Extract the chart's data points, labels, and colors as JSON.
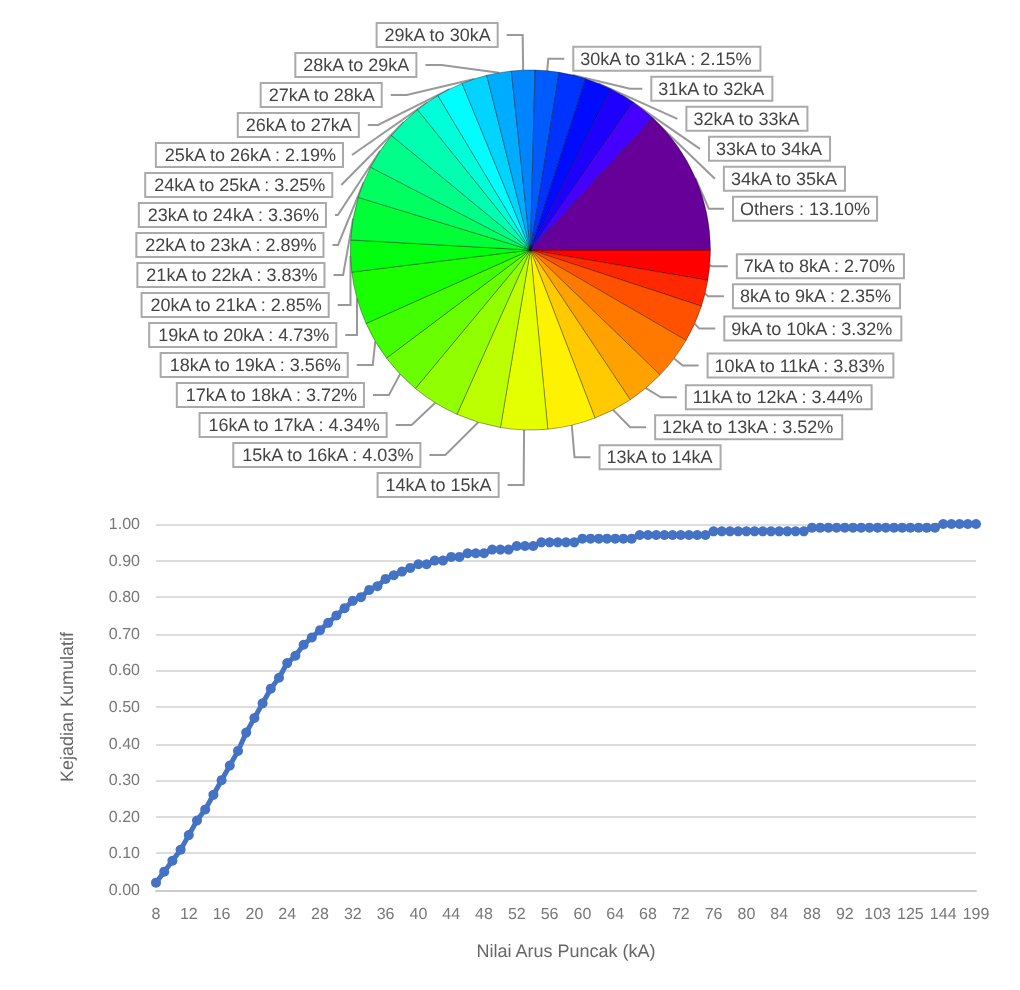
{
  "chart_data": [
    {
      "type": "pie",
      "categories": [
        "7kA to 8kA",
        "8kA to 9kA",
        "9kA to 10kA",
        "10kA to 11kA",
        "11kA to 12kA",
        "12kA to 13kA",
        "13kA to 14kA",
        "14kA to 15kA",
        "15kA to 16kA",
        "16kA to 17kA",
        "17kA to 18kA",
        "18kA to 19kA",
        "19kA to 20kA",
        "20kA to 21kA",
        "21kA to 22kA",
        "22kA to 23kA",
        "23kA to 24kA",
        "24kA to 25kA",
        "25kA to 26kA",
        "26kA to 27kA",
        "27kA to 28kA",
        "28kA to 29kA",
        "29kA to 30kA",
        "30kA to 31kA",
        "31kA to 32kA",
        "32kA to 33kA",
        "33kA to 34kA",
        "34kA to 35kA",
        "Others"
      ],
      "values": [
        2.7,
        2.35,
        3.32,
        3.83,
        3.44,
        3.52,
        4.3,
        4.2,
        4.03,
        4.34,
        3.72,
        3.56,
        4.73,
        2.85,
        3.83,
        2.89,
        3.36,
        3.25,
        2.19,
        2.4,
        2.3,
        2.2,
        2.1,
        2.15,
        2.4,
        2.4,
        2.3,
        2.24,
        13.1
      ],
      "value_labels": [
        "2.70%",
        "2.35%",
        "3.32%",
        "3.83%",
        "3.44%",
        "3.52%",
        null,
        null,
        "4.03%",
        "4.34%",
        "3.72%",
        "3.56%",
        "4.73%",
        "2.85%",
        "3.83%",
        "2.89%",
        "3.36%",
        "3.25%",
        "2.19%",
        null,
        null,
        null,
        null,
        "2.15%",
        null,
        null,
        null,
        null,
        "13.10%"
      ],
      "colors": [
        "#ff0000",
        "#ff2800",
        "#ff5100",
        "#ff7900",
        "#ffa200",
        "#ffca00",
        "#fff200",
        "#e3ff00",
        "#bbff00",
        "#92ff00",
        "#6aff00",
        "#42ff00",
        "#19ff00",
        "#00ff0f",
        "#00ff37",
        "#00ff60",
        "#00ff88",
        "#00ffb0",
        "#00ffd9",
        "#00fdff",
        "#00d4ff",
        "#00acff",
        "#0084ff",
        "#005bff",
        "#0033ff",
        "#000bff",
        "#1e00ff",
        "#4600ff",
        "#660099"
      ],
      "legend": false
    },
    {
      "type": "line",
      "xlabel": "Nilai Arus Puncak (kA)",
      "ylabel": "Kejadian Kumulatif",
      "categories": [
        "8",
        null,
        null,
        null,
        "12",
        null,
        null,
        null,
        "16",
        null,
        null,
        null,
        "20",
        null,
        null,
        null,
        "24",
        null,
        null,
        null,
        "28",
        null,
        null,
        null,
        "32",
        null,
        null,
        null,
        "36",
        null,
        null,
        null,
        "40",
        null,
        null,
        null,
        "44",
        null,
        null,
        null,
        "48",
        null,
        null,
        null,
        "52",
        null,
        null,
        null,
        "56",
        null,
        null,
        null,
        "60",
        null,
        null,
        null,
        "64",
        null,
        null,
        null,
        "68",
        null,
        null,
        null,
        "72",
        null,
        null,
        null,
        "76",
        null,
        null,
        null,
        "80",
        null,
        null,
        null,
        "84",
        null,
        null,
        null,
        "88",
        null,
        null,
        null,
        "92",
        null,
        null,
        null,
        "103",
        null,
        null,
        null,
        "125",
        null,
        null,
        null,
        "144",
        null,
        null,
        null,
        "199"
      ],
      "series": [
        {
          "color": "#4472c4",
          "values": [
            0.02,
            0.05,
            0.08,
            0.11,
            0.15,
            0.19,
            0.22,
            0.26,
            0.3,
            0.34,
            0.38,
            0.43,
            0.47,
            0.51,
            0.55,
            0.58,
            0.62,
            0.64,
            0.67,
            0.69,
            0.71,
            0.73,
            0.75,
            0.77,
            0.79,
            0.8,
            0.82,
            0.83,
            0.85,
            0.86,
            0.87,
            0.88,
            0.89,
            0.89,
            0.9,
            0.9,
            0.91,
            0.91,
            0.92,
            0.92,
            0.92,
            0.93,
            0.93,
            0.93,
            0.94,
            0.94,
            0.94,
            0.95,
            0.95,
            0.95,
            0.95,
            0.95,
            0.96,
            0.96,
            0.96,
            0.96,
            0.96,
            0.96,
            0.96,
            0.97,
            0.97,
            0.97,
            0.97,
            0.97,
            0.97,
            0.97,
            0.97,
            0.97,
            0.98,
            0.98,
            0.98,
            0.98,
            0.98,
            0.98,
            0.98,
            0.98,
            0.98,
            0.98,
            0.98,
            0.98,
            0.99,
            0.99,
            0.99,
            0.99,
            0.99,
            0.99,
            0.99,
            0.99,
            0.99,
            0.99,
            0.99,
            0.99,
            0.99,
            0.99,
            0.99,
            0.99,
            1.0,
            1.0,
            1.0,
            1.0,
            1.0
          ]
        }
      ],
      "ylim": [
        0,
        1
      ],
      "yticks": [
        {
          "value": 0,
          "label": "0.00"
        },
        {
          "value": 0.1,
          "label": "0.10"
        },
        {
          "value": 0.2,
          "label": "0.20"
        },
        {
          "value": 0.3,
          "label": "0.30"
        },
        {
          "value": 0.4,
          "label": "0.40"
        },
        {
          "value": 0.5,
          "label": "0.50"
        },
        {
          "value": 0.6,
          "label": "0.60"
        },
        {
          "value": 0.7,
          "label": "0.70"
        },
        {
          "value": 0.8,
          "label": "0.80"
        },
        {
          "value": 0.9,
          "label": "0.90"
        },
        {
          "value": 1,
          "label": "1.00"
        }
      ],
      "grid": "y",
      "marker": "circle",
      "line_style": "solid",
      "legend": false
    }
  ]
}
